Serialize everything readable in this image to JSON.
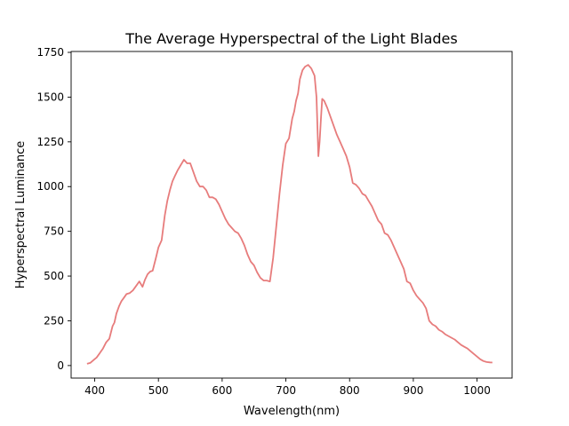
{
  "chart_data": {
    "type": "line",
    "title": "The Average Hyperspectral of the Light Blades",
    "xlabel": "Wavelength(nm)",
    "ylabel": "Hyperspectral Luminance",
    "xlim": [
      363,
      1055
    ],
    "ylim": [
      -70,
      1755
    ],
    "xticks": [
      400,
      500,
      600,
      700,
      800,
      900,
      1000
    ],
    "yticks": [
      0,
      250,
      500,
      750,
      1000,
      1250,
      1500,
      1750
    ],
    "grid": false,
    "line_color": "#e77c7c",
    "series": [
      {
        "x": [
          388,
          393,
          398,
          403,
          408,
          413,
          418,
          423,
          428,
          431,
          434,
          438,
          442,
          446,
          450,
          455,
          460,
          465,
          470,
          475,
          479,
          483,
          487,
          491,
          496,
          500,
          505,
          510,
          514,
          518,
          522,
          526,
          530,
          535,
          540,
          545,
          550,
          555,
          560,
          565,
          570,
          575,
          580,
          585,
          590,
          595,
          600,
          605,
          610,
          615,
          620,
          625,
          630,
          635,
          640,
          645,
          650,
          655,
          660,
          665,
          670,
          675,
          680,
          685,
          690,
          695,
          700,
          705,
          710,
          713,
          716,
          719,
          722,
          726,
          730,
          735,
          740,
          745,
          748,
          751,
          753,
          755,
          757,
          760,
          765,
          770,
          775,
          780,
          785,
          790,
          795,
          800,
          805,
          810,
          815,
          820,
          825,
          830,
          835,
          840,
          845,
          850,
          855,
          860,
          865,
          870,
          875,
          880,
          885,
          890,
          895,
          900,
          905,
          910,
          915,
          920,
          925,
          930,
          935,
          940,
          945,
          950,
          955,
          960,
          965,
          970,
          975,
          980,
          985,
          990,
          995,
          1000,
          1005,
          1010,
          1015,
          1020,
          1024
        ],
        "y": [
          10,
          15,
          30,
          45,
          70,
          95,
          130,
          150,
          220,
          240,
          290,
          330,
          360,
          380,
          400,
          405,
          420,
          445,
          470,
          440,
          480,
          510,
          525,
          530,
          600,
          660,
          700,
          840,
          920,
          980,
          1030,
          1060,
          1090,
          1120,
          1150,
          1130,
          1130,
          1080,
          1030,
          1000,
          1000,
          980,
          940,
          940,
          930,
          900,
          860,
          820,
          790,
          770,
          750,
          740,
          710,
          670,
          620,
          580,
          560,
          520,
          490,
          475,
          475,
          470,
          600,
          780,
          960,
          1120,
          1240,
          1270,
          1380,
          1420,
          1480,
          1520,
          1600,
          1650,
          1670,
          1680,
          1660,
          1620,
          1500,
          1170,
          1250,
          1380,
          1490,
          1480,
          1440,
          1390,
          1340,
          1290,
          1250,
          1210,
          1170,
          1110,
          1020,
          1010,
          990,
          960,
          950,
          920,
          890,
          850,
          810,
          790,
          740,
          730,
          700,
          660,
          620,
          580,
          540,
          470,
          460,
          420,
          390,
          370,
          350,
          320,
          250,
          230,
          220,
          200,
          190,
          175,
          165,
          155,
          145,
          130,
          115,
          105,
          95,
          80,
          65,
          50,
          35,
          25,
          20,
          18,
          17
        ]
      }
    ]
  }
}
